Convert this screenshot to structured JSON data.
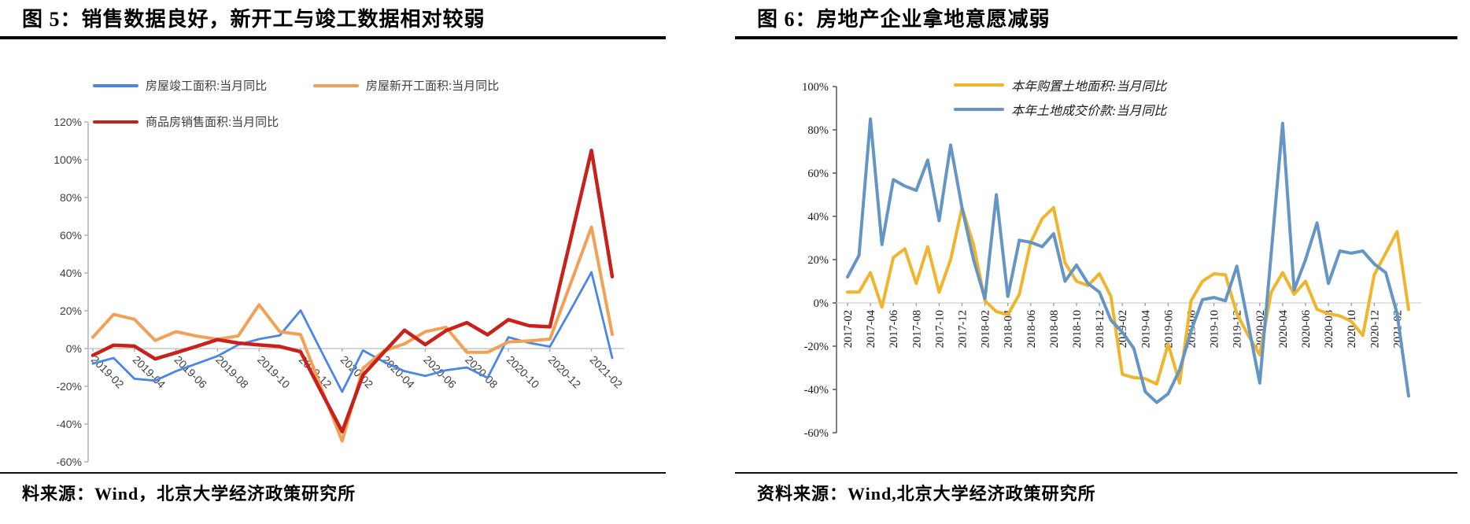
{
  "sources": {
    "left": "料来源：Wind，北京大学经济政策研究所",
    "right": "资料来源：Wind,北京大学经济政策研究所"
  },
  "chart_data": [
    {
      "type": "line",
      "title": "图 5：销售数据良好，新开工与竣工数据相对较弱",
      "xlabel": "",
      "ylabel": "",
      "ylim": [
        -60,
        120
      ],
      "ytick_interval": 20,
      "ytick_format": "percent",
      "x_label_every": 2,
      "grid": "zero-line-only",
      "legend_position": "top-inside",
      "categories": [
        "2019-02",
        "2019-03",
        "2019-04",
        "2019-05",
        "2019-06",
        "2019-07",
        "2019-08",
        "2019-09",
        "2019-10",
        "2019-11",
        "2019-12",
        "2020-01",
        "2020-02",
        "2020-03",
        "2020-04",
        "2020-05",
        "2020-06",
        "2020-07",
        "2020-08",
        "2020-09",
        "2020-10",
        "2020-11",
        "2020-12",
        "2021-01",
        "2021-02",
        "2021-03"
      ],
      "series": [
        {
          "name": "房屋竣工面积:当月同比",
          "color": "#4a86e8",
          "width": 2.8,
          "values": [
            -8,
            -5,
            -16,
            -17,
            -12,
            -8,
            -4,
            2,
            5,
            7,
            20.2,
            -1.5,
            -22.9,
            -1,
            -7,
            -12,
            -14.5,
            -11.5,
            -10,
            -15.5,
            6,
            3,
            1,
            20.5,
            40.4,
            -5
          ]
        },
        {
          "name": "房屋新开工面积:当月同比",
          "color": "#f2a055",
          "width": 4,
          "values": [
            6,
            18.1,
            15.5,
            4.3,
            8.9,
            6.6,
            4.9,
            6.7,
            23.2,
            8.9,
            7.4,
            -21,
            -49,
            -10.5,
            -1.3,
            2.5,
            8.9,
            11.3,
            -2,
            -2,
            3.5,
            4.1,
            5,
            34.5,
            64.3,
            7.5
          ]
        },
        {
          "name": "商品房销售面积:当月同比",
          "color": "#c8201a",
          "width": 4.5,
          "values": [
            -3.6,
            1.8,
            1.3,
            -5.5,
            -2.2,
            1.2,
            4.7,
            2.9,
            1.9,
            1.1,
            -1.7,
            -23,
            -44,
            -14.1,
            -2.1,
            9.7,
            2.1,
            9.5,
            13.7,
            7.3,
            15.3,
            12.1,
            11.5,
            58,
            104.9,
            38.1
          ]
        }
      ]
    },
    {
      "type": "line",
      "title": "图 6：房地产企业拿地意愿减弱",
      "xlabel": "",
      "ylabel": "",
      "ylim": [
        -60,
        100
      ],
      "ytick_interval": 20,
      "ytick_format": "percent",
      "x_label_every": 2,
      "grid": "zero-line-only",
      "legend_position": "top-inside",
      "categories": [
        "2017-02",
        "2017-03",
        "2017-04",
        "2017-05",
        "2017-06",
        "2017-07",
        "2017-08",
        "2017-09",
        "2017-10",
        "2017-11",
        "2017-12",
        "2018-01",
        "2018-02",
        "2018-03",
        "2018-04",
        "2018-05",
        "2018-06",
        "2018-07",
        "2018-08",
        "2018-09",
        "2018-10",
        "2018-11",
        "2018-12",
        "2019-01",
        "2019-02",
        "2019-03",
        "2019-04",
        "2019-05",
        "2019-06",
        "2019-07",
        "2019-08",
        "2019-09",
        "2019-10",
        "2019-11",
        "2019-12",
        "2020-01",
        "2020-02",
        "2020-03",
        "2020-04",
        "2020-05",
        "2020-06",
        "2020-07",
        "2020-08",
        "2020-09",
        "2020-10",
        "2020-11",
        "2020-12",
        "2021-01",
        "2021-02",
        "2021-03"
      ],
      "series": [
        {
          "name": "本年购置土地面积:当月同比",
          "color": "#f0b42d",
          "width": 4,
          "values": [
            5,
            5,
            14,
            -2,
            21,
            25,
            9,
            26,
            5,
            20,
            44,
            27,
            1,
            -4,
            -5.5,
            4,
            28,
            39,
            44,
            18.5,
            10,
            8,
            13.5,
            3,
            -33,
            -34.5,
            -35,
            -37.5,
            -19,
            -37,
            1,
            10,
            13.5,
            13,
            -5,
            -15,
            -24,
            5,
            14,
            4,
            10,
            -3,
            -5,
            -6,
            -8.5,
            -15,
            13,
            23,
            33,
            -3
          ]
        },
        {
          "name": "本年土地成交价款:当月同比",
          "color": "#6495c5",
          "width": 4,
          "values": [
            12,
            22,
            85,
            27,
            57,
            54,
            52,
            66,
            38,
            73,
            44,
            20,
            2,
            50,
            3,
            29,
            28,
            26,
            32,
            10,
            17.5,
            9,
            5,
            -8,
            -13.5,
            -21,
            -41,
            -46,
            -42,
            -31,
            -13,
            1.5,
            2.5,
            1,
            17,
            -10,
            -37,
            23,
            83,
            6,
            20,
            37,
            9,
            24,
            23,
            24,
            18,
            14,
            -5,
            -43
          ]
        }
      ]
    }
  ]
}
